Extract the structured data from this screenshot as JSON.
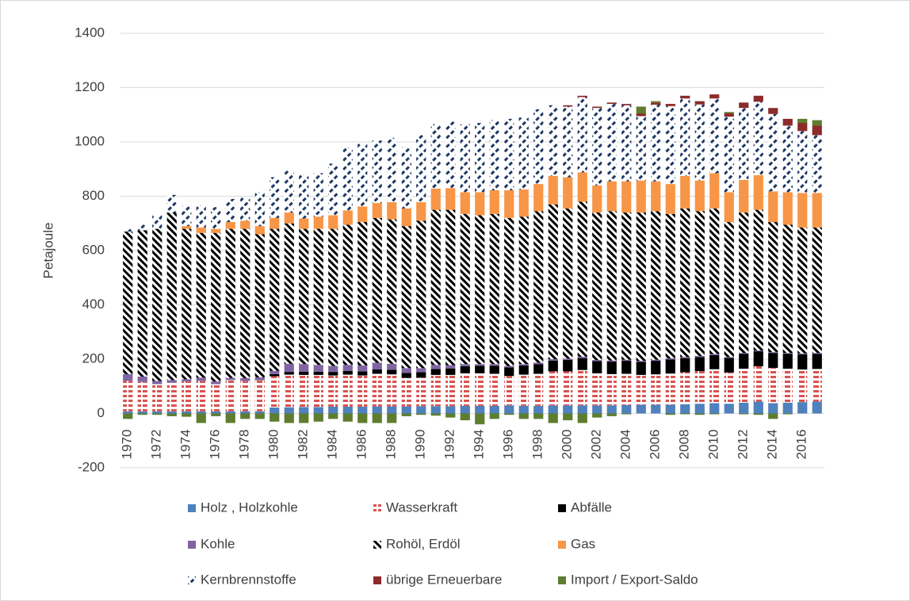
{
  "chart_data": {
    "type": "stacked-bar",
    "y_label": "Petajoule",
    "categories": [
      "1970",
      null,
      "1972",
      null,
      "1974",
      null,
      "1976",
      null,
      "1978",
      null,
      "1980",
      null,
      "1982",
      null,
      "1984",
      null,
      "1986",
      null,
      "1988",
      null,
      "1990",
      null,
      "1992",
      null,
      "1994",
      null,
      "1996",
      null,
      "1998",
      null,
      "2000",
      null,
      "2002",
      null,
      "2004",
      null,
      "2006",
      null,
      "2008",
      null,
      "2010",
      null,
      "2012",
      null,
      "2014",
      null,
      "2016",
      null
    ],
    "ylim": [
      -200,
      1400
    ],
    "yticks": [
      -200,
      0,
      200,
      400,
      600,
      800,
      1000,
      1200,
      1400
    ],
    "grid": true,
    "legend": "bottom",
    "series": [
      {
        "name": "Holz , Holzkohle",
        "color": "#4f81bd",
        "pattern": "solid",
        "values": [
          8,
          8,
          8,
          8,
          8,
          8,
          8,
          8,
          8,
          8,
          22,
          23,
          24,
          24,
          25,
          25,
          25,
          26,
          26,
          26,
          27,
          27,
          27,
          28,
          28,
          28,
          30,
          28,
          28,
          30,
          30,
          30,
          30,
          30,
          31,
          32,
          32,
          32,
          34,
          36,
          38,
          36,
          40,
          44,
          38,
          40,
          42,
          44
        ]
      },
      {
        "name": "Wasserkraft",
        "color": "#d9534f",
        "pattern": "horizontal-dash",
        "values": [
          112,
          108,
          100,
          105,
          110,
          112,
          100,
          115,
          112,
          115,
          115,
          120,
          118,
          118,
          115,
          118,
          115,
          120,
          118,
          105,
          105,
          115,
          115,
          120,
          120,
          118,
          108,
          115,
          118,
          125,
          125,
          130,
          118,
          115,
          115,
          110,
          112,
          115,
          118,
          120,
          125,
          115,
          125,
          130,
          130,
          125,
          120,
          120
        ]
      },
      {
        "name": "Abfälle",
        "color": "#000000",
        "pattern": "solid",
        "values": [
          0,
          0,
          0,
          0,
          0,
          0,
          0,
          0,
          0,
          2,
          8,
          10,
          12,
          12,
          13,
          14,
          15,
          16,
          17,
          18,
          20,
          22,
          24,
          26,
          28,
          30,
          32,
          34,
          36,
          40,
          42,
          44,
          45,
          46,
          48,
          48,
          50,
          52,
          52,
          52,
          52,
          54,
          55,
          55,
          55,
          55,
          56,
          56
        ]
      },
      {
        "name": "Kohle",
        "color": "#8064a2",
        "pattern": "solid",
        "values": [
          25,
          20,
          12,
          10,
          8,
          12,
          10,
          8,
          10,
          8,
          12,
          30,
          28,
          25,
          22,
          22,
          22,
          25,
          22,
          18,
          15,
          15,
          12,
          8,
          6,
          6,
          5,
          5,
          5,
          5,
          5,
          5,
          4,
          4,
          4,
          4,
          4,
          4,
          4,
          4,
          4,
          3,
          3,
          3,
          3,
          3,
          3,
          3
        ]
      },
      {
        "name": "Rohöl, Erdöl",
        "color": "#000000",
        "pattern": "diagonal",
        "values": [
          525,
          539,
          560,
          617,
          554,
          533,
          547,
          549,
          550,
          527,
          523,
          517,
          498,
          501,
          505,
          516,
          528,
          533,
          532,
          523,
          543,
          571,
          572,
          553,
          548,
          553,
          545,
          543,
          558,
          570,
          553,
          571,
          543,
          550,
          542,
          546,
          547,
          532,
          547,
          533,
          536,
          497,
          517,
          518,
          479,
          472,
          464,
          462
        ]
      },
      {
        "name": "Gas",
        "color": "#f79646",
        "pattern": "solid",
        "values": [
          0,
          0,
          0,
          0,
          10,
          20,
          15,
          25,
          30,
          30,
          40,
          40,
          38,
          45,
          50,
          53,
          57,
          55,
          63,
          65,
          68,
          78,
          80,
          80,
          85,
          87,
          102,
          100,
          100,
          105,
          115,
          108,
          100,
          110,
          115,
          118,
          110,
          110,
          120,
          113,
          130,
          110,
          120,
          128,
          113,
          120,
          127,
          127
        ]
      },
      {
        "name": "Kernbrennstoffe",
        "color": "#1f3864",
        "pattern": "dashed-diagonal",
        "values": [
          10,
          20,
          50,
          65,
          75,
          80,
          80,
          85,
          85,
          125,
          150,
          155,
          162,
          160,
          190,
          232,
          233,
          230,
          237,
          225,
          247,
          237,
          245,
          250,
          255,
          258,
          263,
          265,
          275,
          260,
          260,
          277,
          285,
          285,
          280,
          237,
          282,
          287,
          285,
          280,
          275,
          278,
          265,
          270,
          285,
          245,
          228,
          213
        ]
      },
      {
        "name": "übrige Erneuerbare",
        "color": "#8b2b2b",
        "pattern": "solid",
        "values": [
          0,
          0,
          0,
          0,
          0,
          0,
          0,
          0,
          0,
          0,
          0,
          0,
          0,
          0,
          0,
          0,
          0,
          0,
          0,
          0,
          0,
          0,
          0,
          0,
          0,
          0,
          0,
          0,
          0,
          0,
          5,
          5,
          5,
          5,
          5,
          10,
          8,
          8,
          10,
          12,
          15,
          12,
          20,
          22,
          22,
          25,
          30,
          35
        ]
      },
      {
        "name": "Import / Export-Saldo",
        "color": "#5e7d2e",
        "pattern": "solid",
        "values": [
          -20,
          -5,
          -5,
          -10,
          -12,
          -35,
          -10,
          -35,
          -20,
          -20,
          -30,
          -35,
          -35,
          -30,
          -20,
          -30,
          -35,
          -35,
          -35,
          -10,
          -5,
          -8,
          -15,
          -25,
          -40,
          -20,
          -5,
          -20,
          -20,
          -35,
          -25,
          -35,
          -15,
          -10,
          -3,
          25,
          5,
          -5,
          -3,
          -5,
          -3,
          5,
          -3,
          -5,
          -20,
          -3,
          15,
          20
        ]
      }
    ]
  }
}
